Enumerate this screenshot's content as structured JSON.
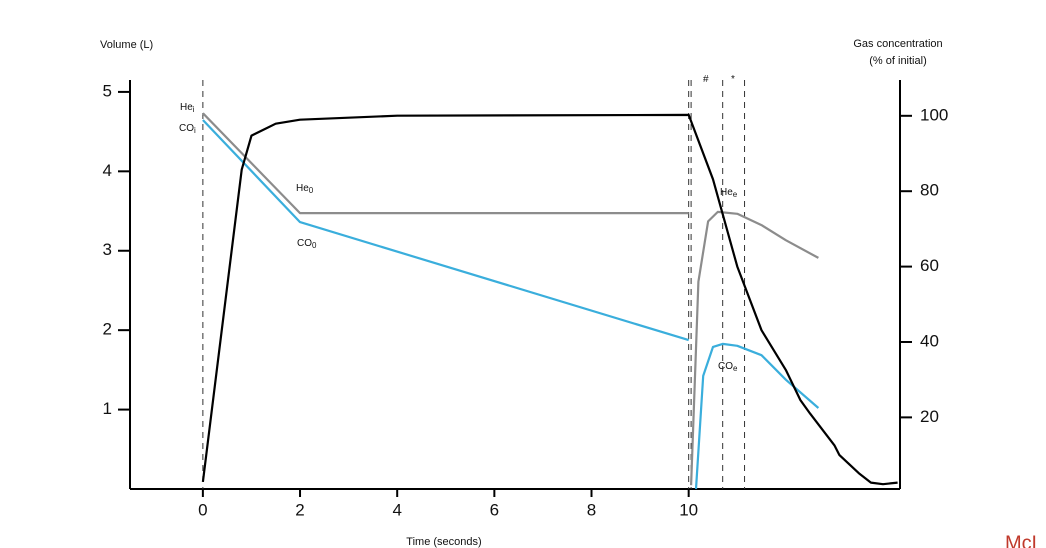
{
  "chart_data": {
    "type": "line",
    "ylabel": "Volume (L)",
    "y2label": [
      "Gas concentration",
      "(% of initial)"
    ],
    "xlabel": "Time (seconds)",
    "xlim": [
      -1.5,
      14.35
    ],
    "xticks": [
      0,
      2,
      4,
      6,
      8,
      10
    ],
    "ylim": [
      0,
      5.15
    ],
    "yticks": [
      1,
      2,
      3,
      4,
      5
    ],
    "y2lim": [
      1,
      109.5
    ],
    "y2ticks": [
      20,
      40,
      60,
      80,
      100
    ],
    "grid": false,
    "series": [
      {
        "name": "Volume",
        "color": "#000000",
        "axis": "y",
        "x": [
          0,
          0.8,
          1,
          1.5,
          2,
          4,
          10,
          10.5,
          11,
          11.5,
          12,
          12.3,
          12.5,
          13,
          13.1,
          13.5,
          13.75,
          14,
          14.3
        ],
        "values": [
          0.09,
          4.02,
          4.45,
          4.6,
          4.65,
          4.7,
          4.71,
          3.9,
          2.8,
          2.0,
          1.5,
          1.12,
          0.95,
          0.55,
          0.43,
          0.2,
          0.08,
          0.06,
          0.08
        ]
      },
      {
        "name": "He",
        "color": "#8c8c8c",
        "axis": "y2",
        "x": [
          0,
          2,
          10,
          null,
          10.05,
          10.2,
          10.4,
          10.6,
          11,
          11.5,
          12,
          12.67
        ],
        "values": [
          100.7,
          74.2,
          74.2,
          null,
          2,
          56,
          72,
          74.5,
          74,
          71,
          67,
          62.3
        ]
      },
      {
        "name": "CO",
        "color": "#3aaedc",
        "axis": "y2",
        "x": [
          0,
          2,
          10,
          null,
          10.15,
          10.3,
          10.5,
          10.7,
          11,
          11.5,
          12,
          12.67
        ],
        "values": [
          98.9,
          71.8,
          40.5,
          null,
          1,
          31,
          38.7,
          39.5,
          39,
          36.5,
          30,
          22.5
        ]
      }
    ],
    "vlines": [
      0,
      10,
      10.05,
      10.7,
      11.15
    ],
    "annotations": [
      {
        "text": "He",
        "sub": "i"
      },
      {
        "text": "CO",
        "sub": "i"
      },
      {
        "text": "He",
        "sub": "0"
      },
      {
        "text": "CO",
        "sub": "0"
      },
      {
        "text": "He",
        "sub": "e"
      },
      {
        "text": "CO",
        "sub": "e"
      },
      {
        "text": "#"
      },
      {
        "text": "*"
      }
    ],
    "footer": "McL"
  }
}
